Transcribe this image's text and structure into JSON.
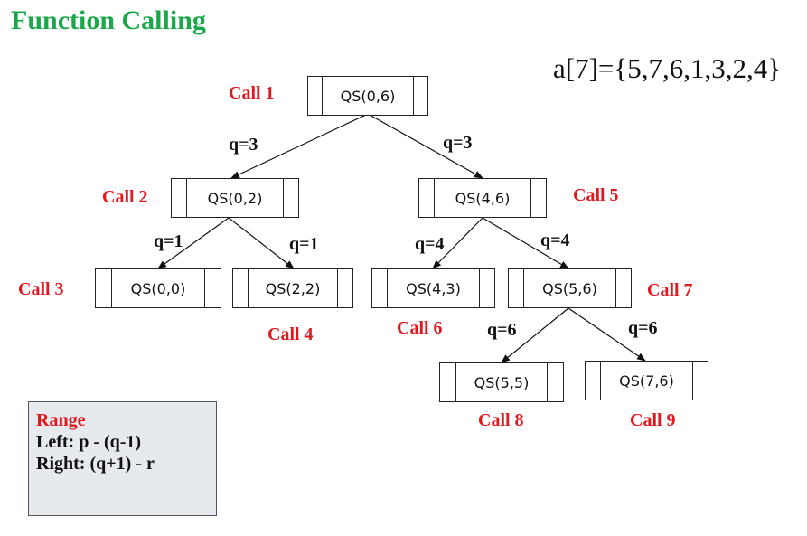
{
  "title": "Function Calling",
  "array_label": "a[7]={5,7,6,1,3,2,4}",
  "nodes": [
    {
      "label": "QS(0,6)",
      "call": "Call 1"
    },
    {
      "label": "QS(0,2)",
      "call": "Call 2"
    },
    {
      "label": "QS(0,0)",
      "call": "Call 3"
    },
    {
      "label": "QS(2,2)",
      "call": "Call 4"
    },
    {
      "label": "QS(4,6)",
      "call": "Call 5"
    },
    {
      "label": "QS(4,3)",
      "call": "Call 6"
    },
    {
      "label": "QS(5,6)",
      "call": "Call 7"
    },
    {
      "label": "QS(5,5)",
      "call": "Call 8"
    },
    {
      "label": "QS(7,6)",
      "call": "Call 9"
    }
  ],
  "edges": [
    {
      "from": "Call 1",
      "to": "Call 2",
      "label": "q=3"
    },
    {
      "from": "Call 1",
      "to": "Call 5",
      "label": "q=3"
    },
    {
      "from": "Call 2",
      "to": "Call 3",
      "label": "q=1"
    },
    {
      "from": "Call 2",
      "to": "Call 4",
      "label": "q=1"
    },
    {
      "from": "Call 5",
      "to": "Call 6",
      "label": "q=4"
    },
    {
      "from": "Call 5",
      "to": "Call 7",
      "label": "q=4"
    },
    {
      "from": "Call 7",
      "to": "Call 8",
      "label": "q=6"
    },
    {
      "from": "Call 7",
      "to": "Call 9",
      "label": "q=6"
    }
  ],
  "range_box": {
    "title": "Range",
    "left": "Left: p - (q-1)",
    "right": "Right: (q+1) - r"
  },
  "colors": {
    "title": "#1aa84a",
    "call": "#e0191f",
    "text": "#111111",
    "range_bg": "#e6e9ee"
  }
}
